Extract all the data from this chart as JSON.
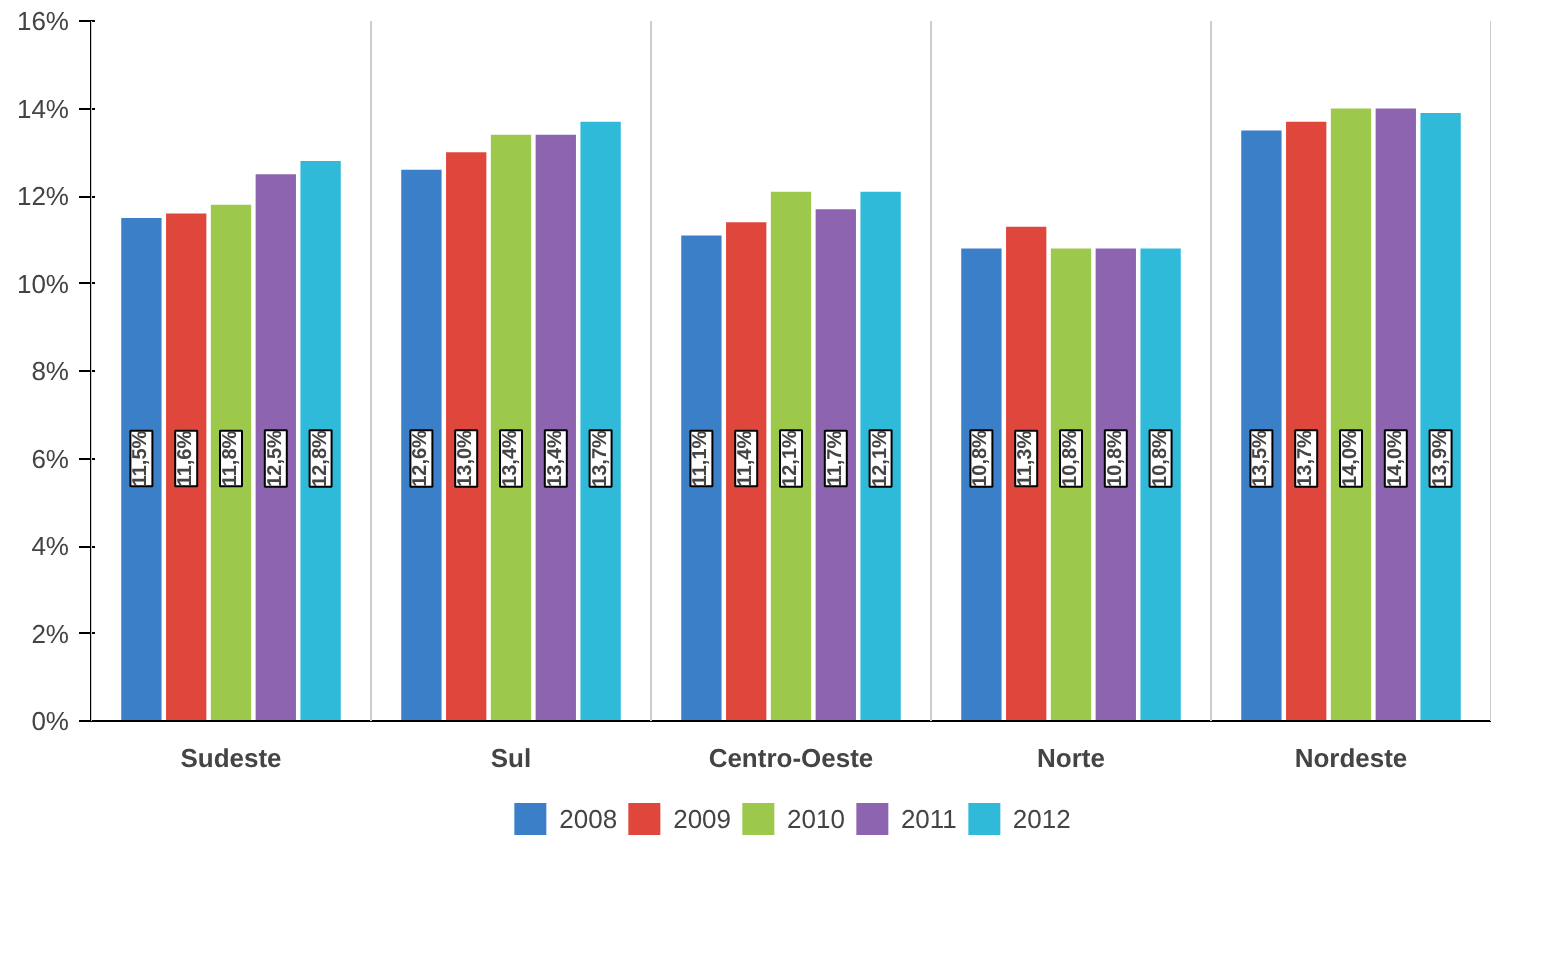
{
  "chart_data": {
    "type": "bar",
    "categories": [
      "Sudeste",
      "Sul",
      "Centro-Oeste",
      "Norte",
      "Nordeste"
    ],
    "series": [
      {
        "name": "2008",
        "color": "#3b7fc8",
        "values": [
          11.5,
          12.6,
          11.1,
          10.8,
          13.5
        ],
        "value_labels": [
          "11,5%",
          "12,6%",
          "11,1%",
          "10,8%",
          "13,5%"
        ]
      },
      {
        "name": "2009",
        "color": "#e0473c",
        "values": [
          11.6,
          13.0,
          11.4,
          11.3,
          13.7
        ],
        "value_labels": [
          "11,6%",
          "13,0%",
          "11,4%",
          "11,3%",
          "13,7%"
        ]
      },
      {
        "name": "2010",
        "color": "#9cc94c",
        "values": [
          11.8,
          13.4,
          12.1,
          10.8,
          14.0
        ],
        "value_labels": [
          "11,8%",
          "13,4%",
          "12,1%",
          "10,8%",
          "14,0%"
        ]
      },
      {
        "name": "2011",
        "color": "#8d64b0",
        "values": [
          12.5,
          13.4,
          11.7,
          10.8,
          14.0
        ],
        "value_labels": [
          "12,5%",
          "13,4%",
          "11,7%",
          "10,8%",
          "14,0%"
        ]
      },
      {
        "name": "2012",
        "color": "#2fbad9",
        "values": [
          12.8,
          13.7,
          12.1,
          10.8,
          13.9
        ],
        "value_labels": [
          "12,8%",
          "13,7%",
          "12,1%",
          "10,8%",
          "13,9%"
        ]
      }
    ],
    "ylim": [
      0,
      16
    ],
    "yticks": [
      {
        "value": 0,
        "label": "0%"
      },
      {
        "value": 2,
        "label": "2%"
      },
      {
        "value": 4,
        "label": "4%"
      },
      {
        "value": 6,
        "label": "6%"
      },
      {
        "value": 8,
        "label": "8%"
      },
      {
        "value": 10,
        "label": "10%"
      },
      {
        "value": 12,
        "label": "12%"
      },
      {
        "value": 14,
        "label": "14%"
      },
      {
        "value": 16,
        "label": "16%"
      }
    ],
    "grid": false,
    "legend": "bottom"
  }
}
